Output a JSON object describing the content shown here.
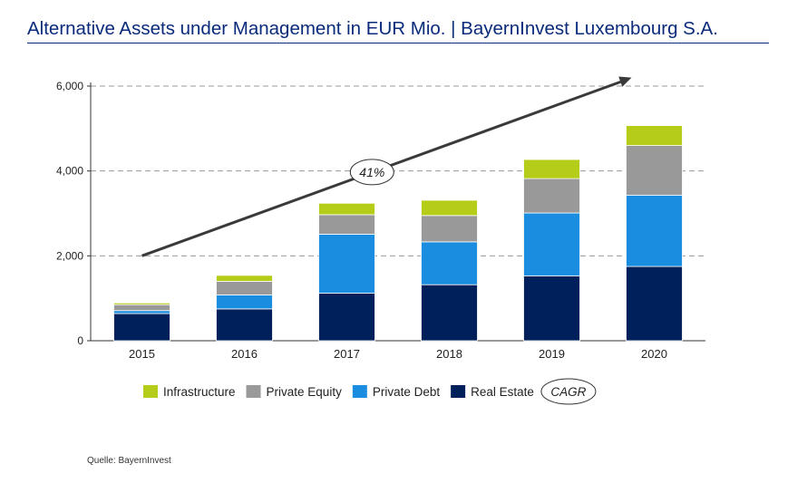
{
  "page": {
    "title": "Alternative Assets under Management in EUR Mio. | BayernInvest Luxembourg S.A.",
    "source": "Quelle: BayernInvest"
  },
  "chart_data": {
    "type": "bar",
    "stacked": true,
    "title": "Alternative Assets under Management in EUR Mio. | BayernInvest Luxembourg S.A.",
    "xlabel": "",
    "ylabel": "",
    "categories": [
      "2015",
      "2016",
      "2017",
      "2018",
      "2019",
      "2020"
    ],
    "ylim": [
      0,
      6000
    ],
    "yticks": [
      0,
      2000,
      4000,
      6000
    ],
    "ytick_labels": [
      "0",
      "2,000",
      "4,000",
      "6,000"
    ],
    "grid": "horizontal dashed",
    "legend_position": "bottom",
    "series": [
      {
        "name": "Real Estate",
        "color": "#00205b",
        "values": [
          640,
          750,
          1120,
          1320,
          1530,
          1750
        ]
      },
      {
        "name": "Private Debt",
        "color": "#1a8de0",
        "values": [
          70,
          330,
          1390,
          1010,
          1480,
          1680
        ]
      },
      {
        "name": "Private Equity",
        "color": "#999999",
        "values": [
          140,
          320,
          460,
          620,
          810,
          1170
        ]
      },
      {
        "name": "Infrastructure",
        "color": "#b5cc18",
        "values": [
          40,
          140,
          270,
          360,
          450,
          470
        ]
      }
    ],
    "legend_order": [
      "Infrastructure",
      "Private Equity",
      "Private Debt",
      "Real Estate"
    ],
    "annotation": {
      "label": "41%",
      "legend_label": "CAGR",
      "from": [
        "2015",
        2000
      ],
      "to": [
        "2020",
        6200
      ]
    }
  }
}
